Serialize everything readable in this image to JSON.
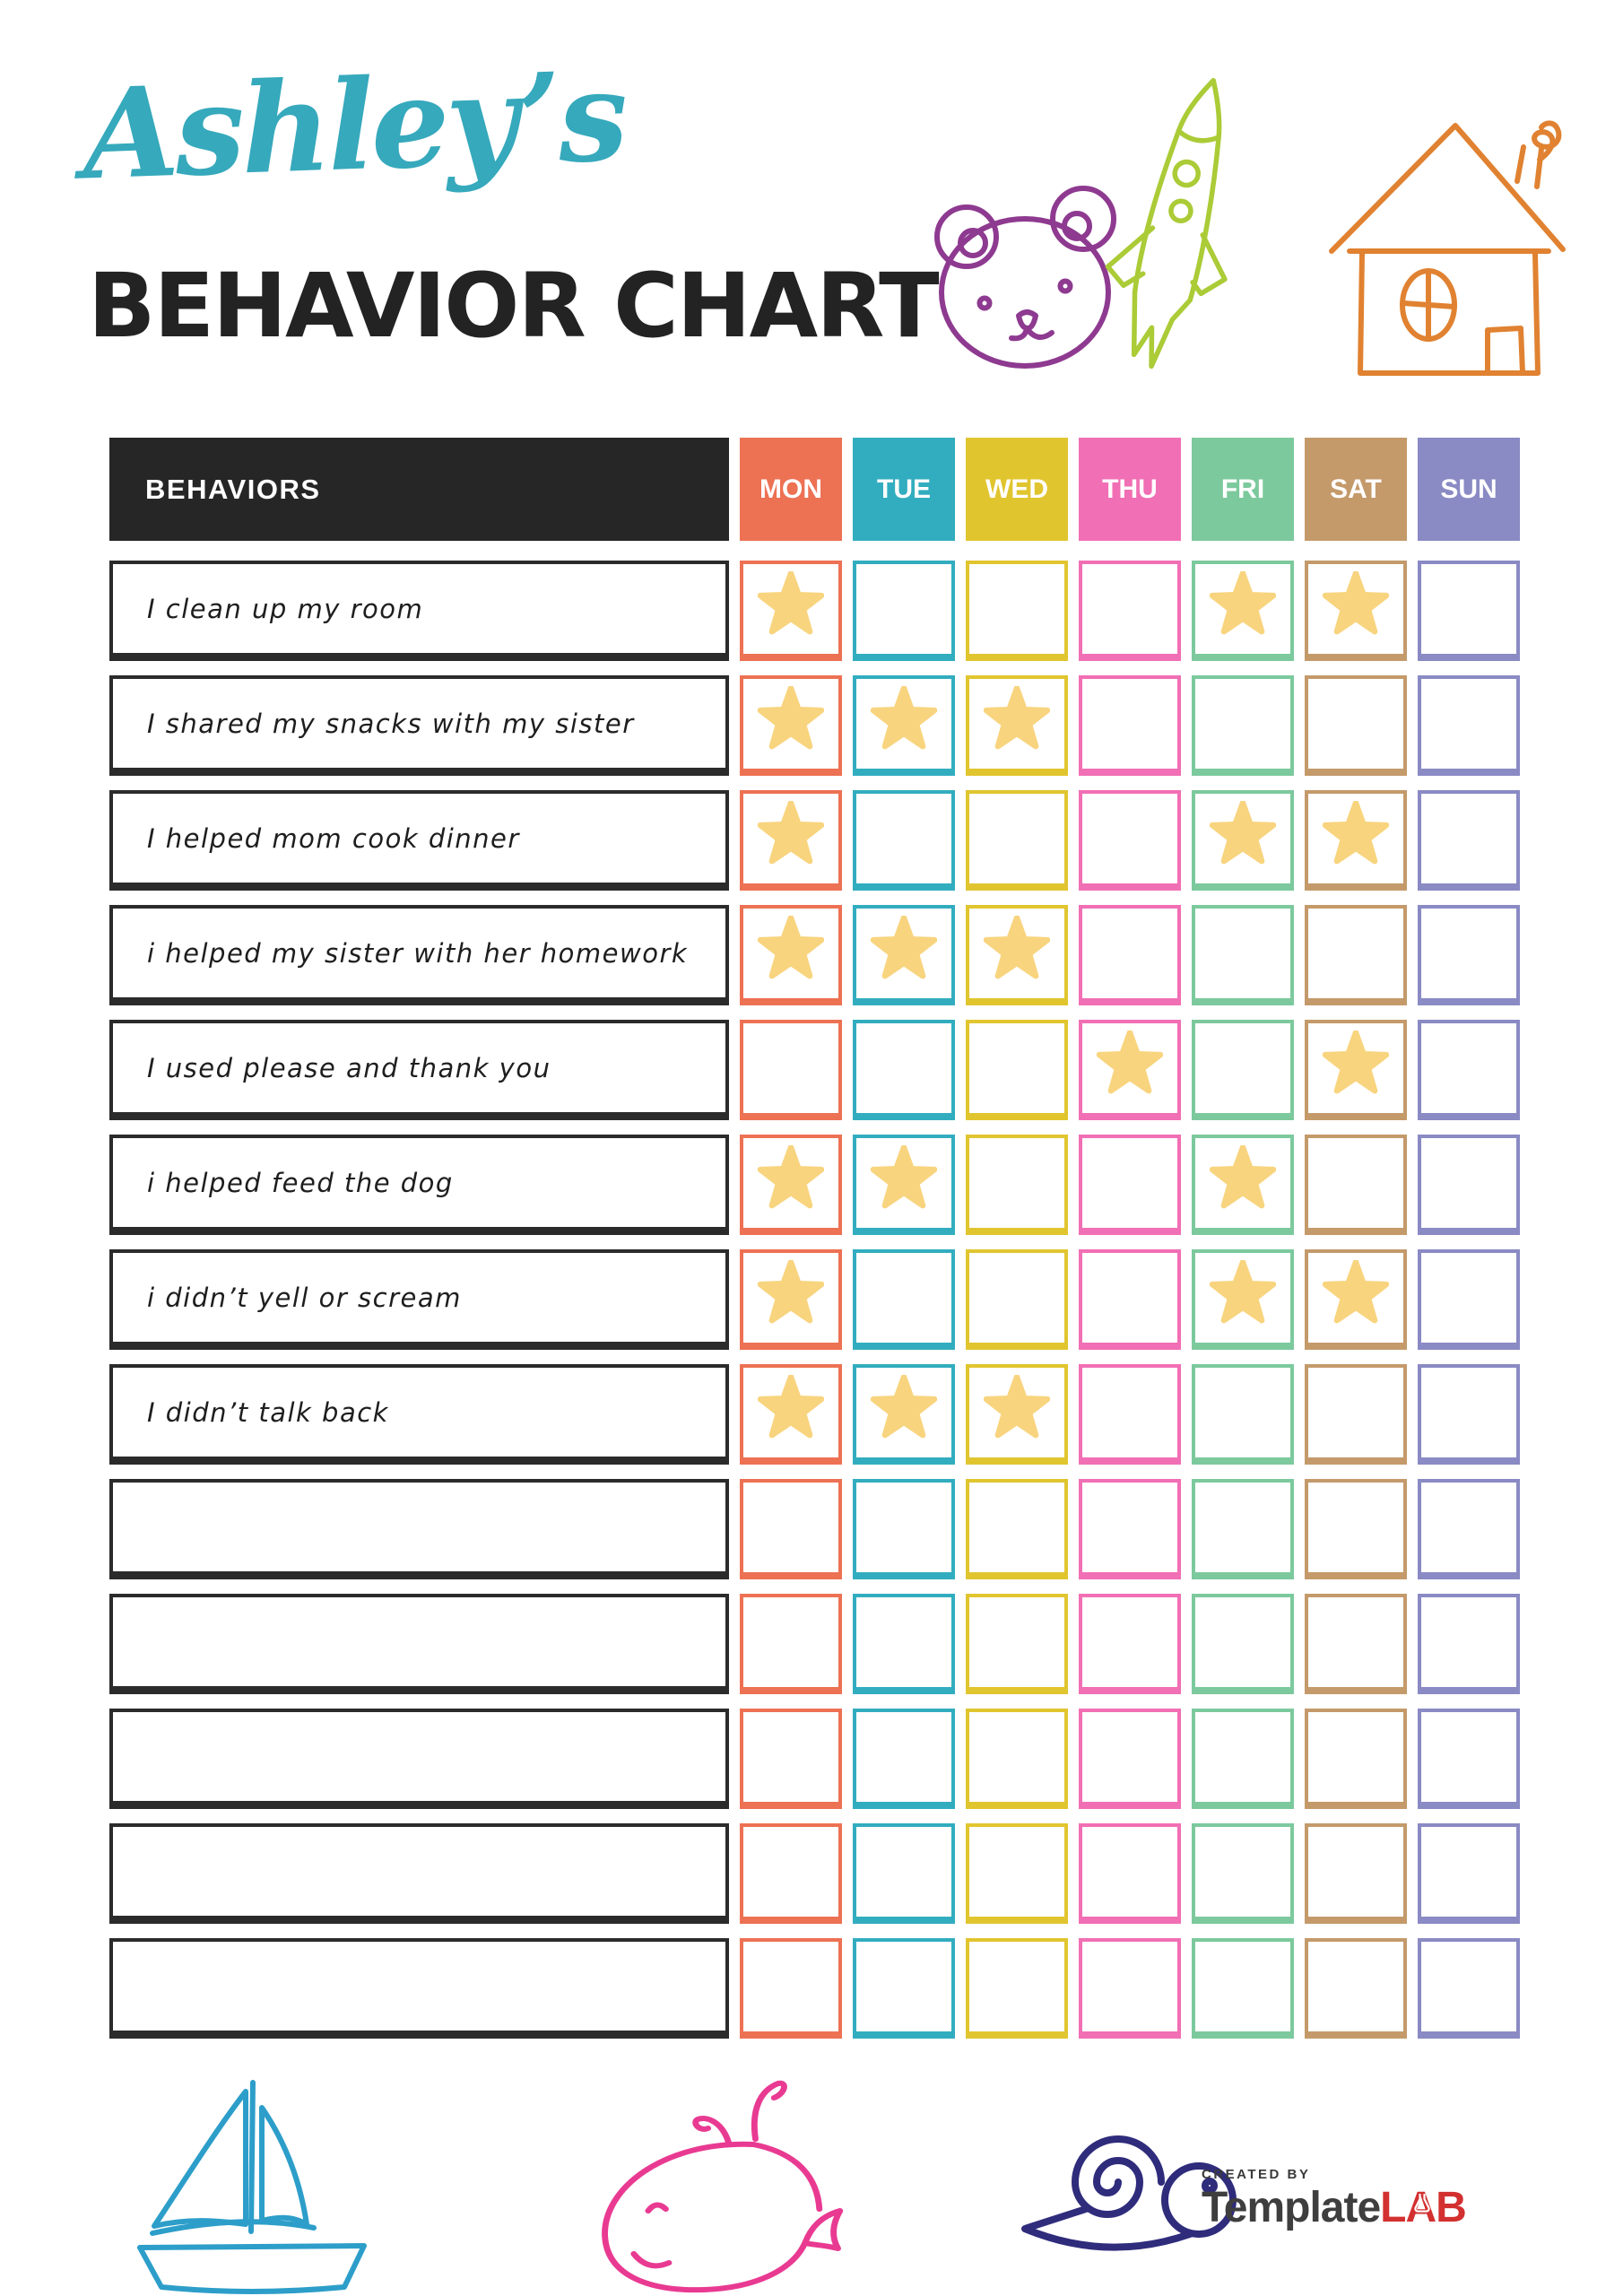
{
  "header": {
    "name": "Ashley’s",
    "name_color": "#36a9bc",
    "title": "BEHAVIOR CHART",
    "title_color": "#232323"
  },
  "doodles": {
    "top": [
      "bear",
      "rocket",
      "house"
    ],
    "bottom": [
      "sailboat",
      "whale",
      "snail"
    ],
    "colors": {
      "bear": "#8e3a90",
      "rocket": "#abcb37",
      "house": "#e08231",
      "sailboat": "#2d9ec9",
      "whale": "#e93a92",
      "snail": "#2f2c7c"
    }
  },
  "table": {
    "behaviors_header": "BEHAVIORS",
    "header_bg": "#262626",
    "star_color": "#f8d47e",
    "days": [
      {
        "label": "MON",
        "color": "#ed7153"
      },
      {
        "label": "TUE",
        "color": "#32adbf"
      },
      {
        "label": "WED",
        "color": "#e1c52f"
      },
      {
        "label": "THU",
        "color": "#f16fb4"
      },
      {
        "label": "FRI",
        "color": "#7cc99d"
      },
      {
        "label": "SAT",
        "color": "#c49a6b"
      },
      {
        "label": "SUN",
        "color": "#8a8ac4"
      }
    ],
    "rows": [
      {
        "behavior": "I clean up my room",
        "stars": [
          "MON",
          "FRI",
          "SAT"
        ]
      },
      {
        "behavior": "I shared my snacks with my sister",
        "stars": [
          "MON",
          "TUE",
          "WED"
        ]
      },
      {
        "behavior": "I helped mom cook dinner",
        "stars": [
          "MON",
          "FRI",
          "SAT"
        ]
      },
      {
        "behavior": "i helped my sister with her homework",
        "stars": [
          "MON",
          "TUE",
          "WED"
        ]
      },
      {
        "behavior": "I used please and thank you",
        "stars": [
          "THU",
          "SAT"
        ]
      },
      {
        "behavior": "i helped feed the dog",
        "stars": [
          "MON",
          "TUE",
          "FRI"
        ]
      },
      {
        "behavior": "i didn’t yell or scream",
        "stars": [
          "MON",
          "FRI",
          "SAT"
        ]
      },
      {
        "behavior": "I didn’t talk back",
        "stars": [
          "MON",
          "TUE",
          "WED"
        ]
      },
      {
        "behavior": "",
        "stars": []
      },
      {
        "behavior": "",
        "stars": []
      },
      {
        "behavior": "",
        "stars": []
      },
      {
        "behavior": "",
        "stars": []
      },
      {
        "behavior": "",
        "stars": []
      }
    ]
  },
  "footer": {
    "created_by": "CREATED BY",
    "brand_primary": "Template",
    "brand_accent_letters": [
      "L",
      "A",
      "B"
    ],
    "brand_accent_color": "#d33030"
  }
}
